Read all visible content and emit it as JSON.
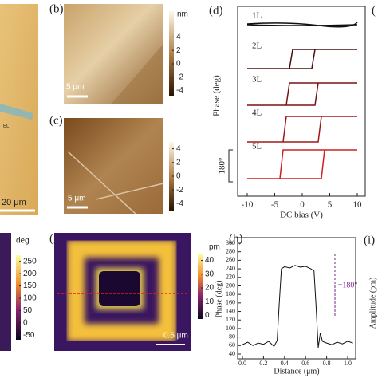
{
  "a": {
    "scale_bar": "20 μm",
    "note": "EL"
  },
  "b": {
    "label": "(b)",
    "colorbar_unit": "nm",
    "colorbar_ticks": [
      4,
      2,
      0,
      -2,
      -4
    ],
    "scale_bar": "5 μm"
  },
  "c": {
    "label": "(c)",
    "colorbar_unit": "nm",
    "colorbar_ticks": [
      4,
      2,
      0,
      -2,
      -4
    ],
    "scale_bar": "5 μm"
  },
  "d": {
    "label": "(d)",
    "xlabel": "DC bias (V)",
    "ylabel": "Phase (deg)",
    "xlim": [
      -10,
      10
    ],
    "xticks": [
      -10,
      -5,
      0,
      5,
      10
    ],
    "layers": [
      "1L",
      "2L",
      "3L",
      "4L",
      "5L"
    ],
    "bracket": "180°"
  },
  "f": {
    "colorbar_unit": "deg",
    "colorbar_ticks": [
      250,
      200,
      150,
      100,
      50,
      0,
      -50
    ]
  },
  "g": {
    "label": "(g)",
    "colorbar_unit": "pm",
    "colorbar_ticks": [
      40,
      30,
      20,
      10,
      0
    ],
    "scale_bar": "0.5 μm"
  },
  "h": {
    "label": "(h)",
    "xlabel": "Distance (μm)",
    "ylabel": "Phase (deg)",
    "annotation": "~180°",
    "xlim": [
      0,
      1
    ],
    "xticks": [
      {
        "value": 0,
        "label": "0.0"
      },
      {
        "value": 0.2,
        "label": "0.2"
      },
      {
        "value": 0.4,
        "label": "0.4"
      },
      {
        "value": 0.6,
        "label": "0.6"
      },
      {
        "value": 0.8,
        "label": "0.8"
      },
      {
        "value": 1,
        "label": "1.0"
      }
    ],
    "ylim": [
      40,
      300
    ],
    "yticks": [
      40,
      60,
      80,
      100,
      120,
      140,
      160,
      180,
      200,
      220,
      240,
      260,
      280,
      300
    ],
    "x": [
      0,
      0.05,
      0.1,
      0.15,
      0.2,
      0.25,
      0.3,
      0.33,
      0.35,
      0.37,
      0.4,
      0.45,
      0.5,
      0.55,
      0.6,
      0.65,
      0.68,
      0.7,
      0.72,
      0.74,
      0.76,
      0.8,
      0.85,
      0.9,
      0.95,
      1.0,
      1.05
    ],
    "values": [
      62,
      68,
      60,
      66,
      63,
      70,
      58,
      72,
      160,
      240,
      245,
      242,
      248,
      244,
      246,
      240,
      235,
      150,
      55,
      90,
      70,
      66,
      62,
      68,
      64,
      70,
      66
    ]
  },
  "i": {
    "label": "(i)",
    "ylabel": "Amplitude (pm)"
  }
}
